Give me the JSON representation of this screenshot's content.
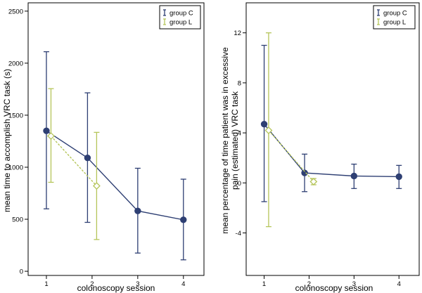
{
  "colors": {
    "groupC": "#2e3f73",
    "groupL": "#b5c55a",
    "axis": "#000000"
  },
  "chart_data": [
    {
      "type": "line",
      "title": "",
      "xlabel": "colonoscopy session",
      "ylabel": "mean time to accomplish VRC task (s)",
      "ylabel_lines": [
        "mean time to accomplish VRC task (s)"
      ],
      "xlim": [
        0.6,
        4.45
      ],
      "ylim": [
        -40,
        2580
      ],
      "x_ticks": [
        1,
        2,
        3,
        4
      ],
      "x_tick_labels": [
        "1",
        "2",
        "3",
        "4"
      ],
      "y_ticks": [
        0,
        500,
        1000,
        1500,
        2000,
        2500
      ],
      "y_tick_labels": [
        "0",
        "500",
        "1000",
        "1500",
        "2000",
        "2500"
      ],
      "grid": false,
      "legend_position": "top-right",
      "series": [
        {
          "name": "group C",
          "color_key": "groupC",
          "line_style": "solid",
          "marker": "circle",
          "x": [
            1,
            1.9,
            3,
            4
          ],
          "y": [
            1350,
            1090,
            580,
            495
          ],
          "err_low": [
            600,
            470,
            175,
            110
          ],
          "err_high": [
            2110,
            1715,
            990,
            885
          ]
        },
        {
          "name": "group L",
          "color_key": "groupL",
          "line_style": "dashed",
          "marker": "diamond",
          "x": [
            1.1,
            2.1
          ],
          "y": [
            1300,
            820
          ],
          "err_low": [
            855,
            305
          ],
          "err_high": [
            1755,
            1335
          ]
        }
      ]
    },
    {
      "type": "line",
      "title": "",
      "xlabel": "colonoscopy session",
      "ylabel": "mean percentage of time patient was in excessive pain (estimated) VRC task",
      "ylabel_lines": [
        "mean percentage of time patient was in excessive",
        "pain (estimated) VRC task"
      ],
      "xlim": [
        0.6,
        4.45
      ],
      "ylim": [
        -7.4,
        14.4
      ],
      "x_ticks": [
        1,
        2,
        3,
        4
      ],
      "x_tick_labels": [
        "1",
        "2",
        "3",
        "4"
      ],
      "y_ticks": [
        -4,
        0,
        4,
        8,
        12
      ],
      "y_tick_labels": [
        "-4",
        "0",
        "4",
        "8",
        "12"
      ],
      "grid": false,
      "legend_position": "top-right",
      "series": [
        {
          "name": "group C",
          "color_key": "groupC",
          "line_style": "solid",
          "marker": "circle",
          "x": [
            1,
            1.9,
            3,
            4
          ],
          "y": [
            4.7,
            0.8,
            0.55,
            0.5
          ],
          "err_low": [
            -1.5,
            -0.7,
            -0.45,
            -0.45
          ],
          "err_high": [
            11.0,
            2.3,
            1.5,
            1.4
          ]
        },
        {
          "name": "group L",
          "color_key": "groupL",
          "line_style": "dashed",
          "marker": "diamond",
          "x": [
            1.1,
            2.1
          ],
          "y": [
            4.2,
            0.1
          ],
          "err_low": [
            -3.5,
            -0.15
          ],
          "err_high": [
            12.0,
            0.35
          ]
        }
      ]
    }
  ]
}
